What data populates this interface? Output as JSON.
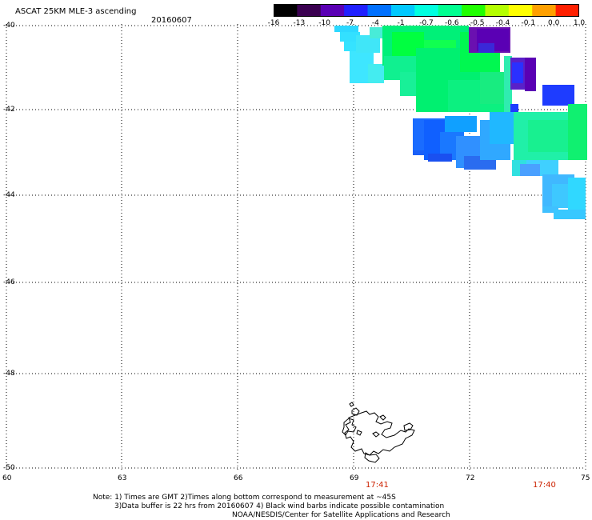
{
  "header": {
    "title": "ASCAT 25KM MLE-3 ascending",
    "date": "20160607"
  },
  "colorbar": {
    "labels": [
      "-16",
      "-13",
      "-10",
      "-7",
      "-4",
      "-1",
      "-0.7",
      "-0.6",
      "-0.5",
      "-0.4",
      "-0.1",
      "0.0",
      "1.0"
    ],
    "colors": [
      "#000000",
      "#3a0050",
      "#5a00b4",
      "#2020ff",
      "#0070ff",
      "#00c8ff",
      "#00ffe0",
      "#00ff90",
      "#20ff00",
      "#b4ff00",
      "#ffff00",
      "#ffa000",
      "#ff2000"
    ]
  },
  "axes": {
    "lat_labels": [
      "-40",
      "-42",
      "-44",
      "-46",
      "-48",
      "-50"
    ],
    "lon_labels": [
      "60",
      "63",
      "66",
      "69",
      "72",
      "75"
    ]
  },
  "times": {
    "left": "17:41",
    "right": "17:40"
  },
  "notes": {
    "line1": "Note: 1) Times are GMT 2)Times along bottom correspond to measurement at ~45S",
    "line2": "3)Data buffer is 22 hrs from 20160607 4) Black wind barbs indicate possible contamination",
    "line3": "NOAA/NESDIS/Center for Satellite Applications and Research"
  }
}
